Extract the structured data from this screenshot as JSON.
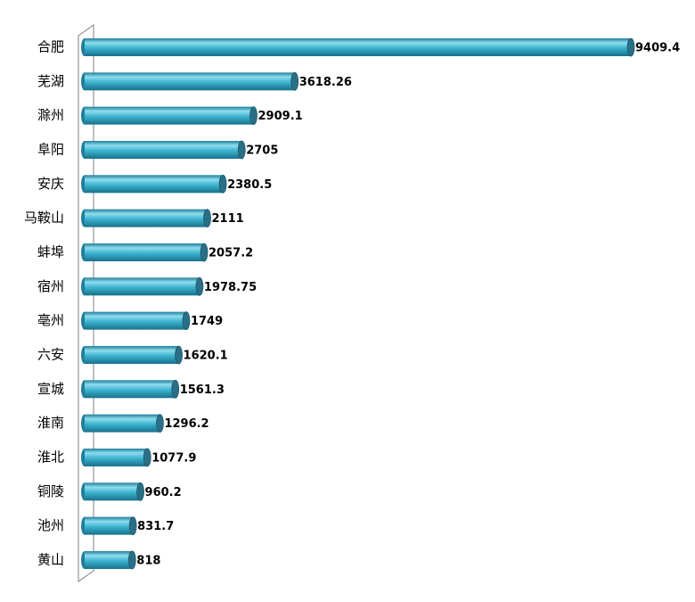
{
  "chart_data": {
    "type": "bar",
    "orientation": "horizontal",
    "categories": [
      "合肥",
      "芜湖",
      "滁州",
      "阜阳",
      "安庆",
      "马鞍山",
      "蚌埠",
      "宿州",
      "亳州",
      "六安",
      "宣城",
      "淮南",
      "淮北",
      "铜陵",
      "池州",
      "黄山"
    ],
    "values": [
      9409.4,
      3618.26,
      2909.1,
      2705,
      2380.5,
      2111,
      2057.2,
      1978.75,
      1749,
      1620.1,
      1561.3,
      1296.2,
      1077.9,
      960.2,
      831.7,
      818
    ],
    "color": "#33aac8"
  }
}
